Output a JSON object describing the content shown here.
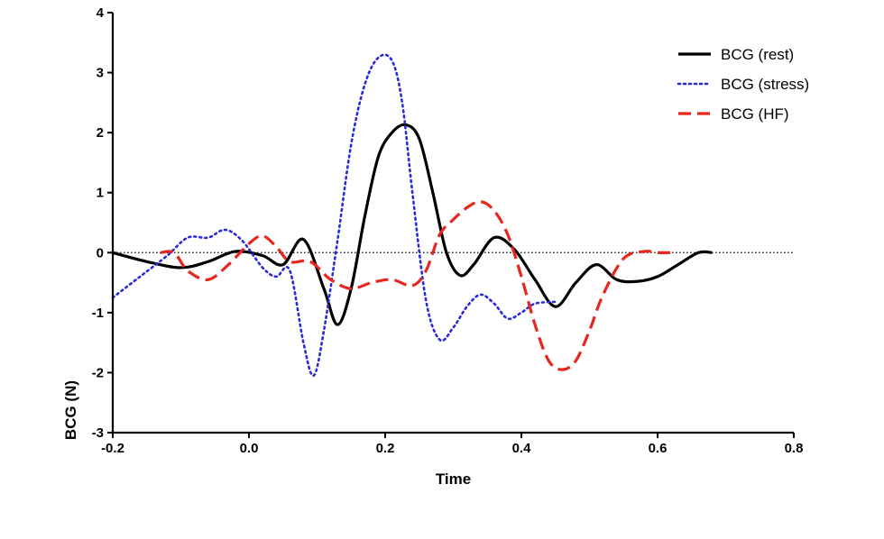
{
  "chart_data": {
    "type": "line",
    "title": "",
    "xlabel": "Time",
    "ylabel": "BCG (N)",
    "xlim": [
      -0.2,
      0.8
    ],
    "ylim": [
      -3,
      4
    ],
    "xticks": [
      -0.2,
      0.0,
      0.2,
      0.4,
      0.6,
      0.8
    ],
    "xtick_labels": [
      "-0.2",
      "0.0",
      "0.2",
      "0.4",
      "0.6",
      "0.8"
    ],
    "yticks": [
      -3,
      -2,
      -1,
      0,
      1,
      2,
      3,
      4
    ],
    "ytick_labels": [
      "-3",
      "-2",
      "-1",
      "0",
      "1",
      "2",
      "3",
      "4"
    ],
    "reference_line_y": 0,
    "legend_position": "top-right",
    "series": [
      {
        "name": "BCG (rest)",
        "color": "#000000",
        "style": "solid",
        "x": [
          -0.2,
          -0.15,
          -0.1,
          -0.06,
          -0.02,
          0.02,
          0.05,
          0.08,
          0.11,
          0.13,
          0.15,
          0.17,
          0.19,
          0.21,
          0.23,
          0.25,
          0.27,
          0.29,
          0.31,
          0.33,
          0.36,
          0.39,
          0.42,
          0.45,
          0.48,
          0.51,
          0.54,
          0.57,
          0.6,
          0.63,
          0.66,
          0.68
        ],
        "y": [
          0.0,
          -0.15,
          -0.25,
          -0.15,
          0.02,
          -0.05,
          -0.2,
          0.22,
          -0.6,
          -1.2,
          -0.6,
          0.6,
          1.6,
          2.0,
          2.13,
          1.9,
          1.0,
          0.0,
          -0.38,
          -0.2,
          0.25,
          0.05,
          -0.45,
          -0.9,
          -0.5,
          -0.2,
          -0.45,
          -0.48,
          -0.4,
          -0.2,
          0.0,
          0.0
        ]
      },
      {
        "name": "BCG (stress)",
        "color": "#2a2ad8",
        "style": "dotted",
        "x": [
          -0.2,
          -0.16,
          -0.12,
          -0.09,
          -0.06,
          -0.035,
          -0.01,
          0.02,
          0.04,
          0.06,
          0.08,
          0.095,
          0.11,
          0.13,
          0.15,
          0.17,
          0.19,
          0.21,
          0.225,
          0.24,
          0.26,
          0.28,
          0.3,
          0.32,
          0.34,
          0.36,
          0.38,
          0.4,
          0.42,
          0.45
        ],
        "y": [
          -0.75,
          -0.4,
          -0.05,
          0.25,
          0.25,
          0.38,
          0.2,
          -0.25,
          -0.4,
          -0.3,
          -1.5,
          -2.05,
          -1.3,
          0.2,
          1.8,
          2.8,
          3.25,
          3.2,
          2.5,
          1.0,
          -0.8,
          -1.45,
          -1.25,
          -0.9,
          -0.7,
          -0.85,
          -1.1,
          -1.0,
          -0.85,
          -0.82
        ]
      },
      {
        "name": "BCG (HF)",
        "color": "#e8261e",
        "style": "dashed",
        "x": [
          -0.13,
          -0.11,
          -0.09,
          -0.06,
          -0.03,
          0.0,
          0.02,
          0.04,
          0.06,
          0.09,
          0.12,
          0.15,
          0.18,
          0.21,
          0.24,
          0.26,
          0.28,
          0.3,
          0.32,
          0.34,
          0.36,
          0.38,
          0.4,
          0.42,
          0.44,
          0.46,
          0.48,
          0.5,
          0.52,
          0.55,
          0.58,
          0.6,
          0.62
        ],
        "y": [
          0.0,
          0.0,
          -0.3,
          -0.45,
          -0.2,
          0.15,
          0.28,
          0.1,
          -0.15,
          -0.15,
          -0.45,
          -0.6,
          -0.5,
          -0.45,
          -0.55,
          -0.3,
          0.3,
          0.55,
          0.75,
          0.85,
          0.7,
          0.3,
          -0.4,
          -1.2,
          -1.8,
          -1.95,
          -1.8,
          -1.3,
          -0.7,
          -0.1,
          0.02,
          0.0,
          0.0
        ]
      }
    ]
  }
}
